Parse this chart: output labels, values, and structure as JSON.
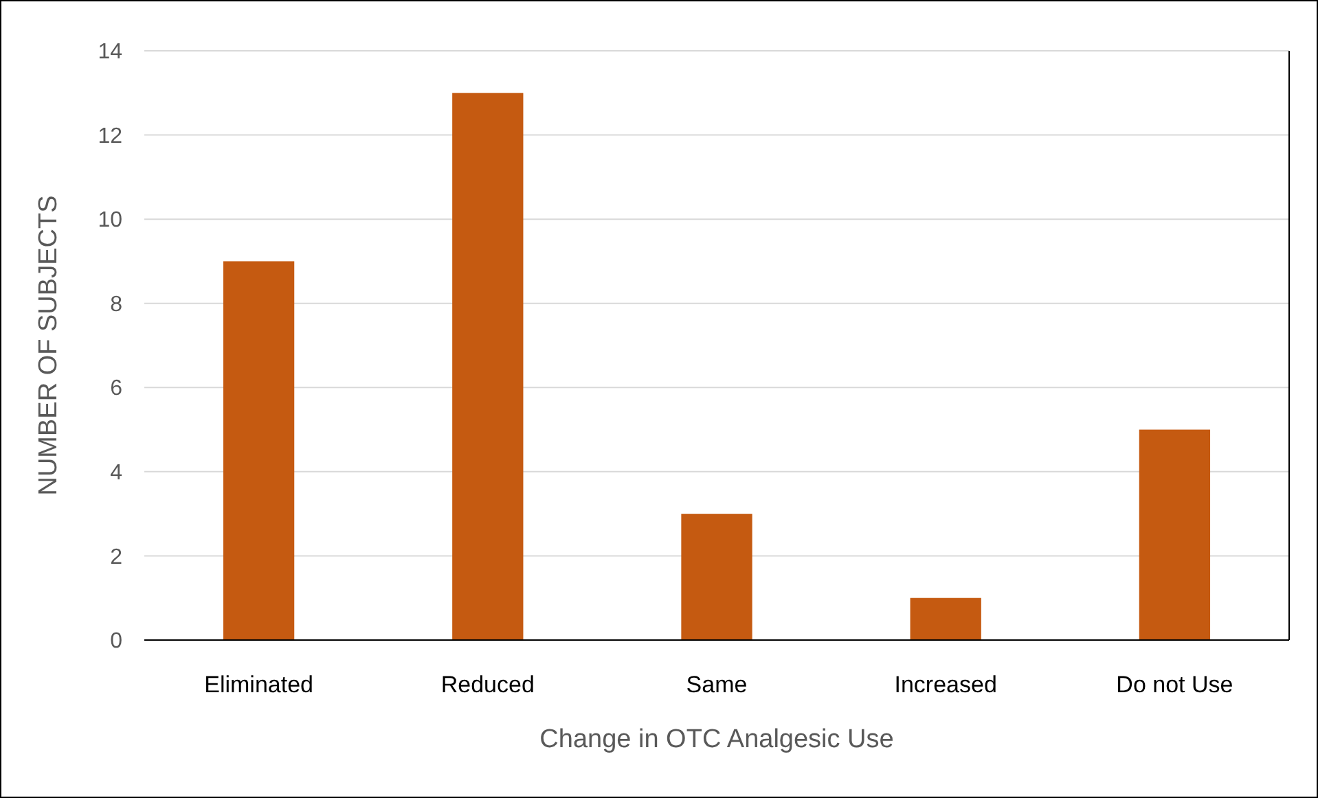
{
  "chart_data": {
    "type": "bar",
    "xlabel": "Change in OTC Analgesic Use",
    "ylabel": "NUMBER OF SUBJECTS",
    "categories": [
      "Eliminated",
      "Reduced",
      "Same",
      "Increased",
      "Do not Use"
    ],
    "values": [
      9,
      13,
      3,
      1,
      5
    ],
    "color": "#c55a11",
    "ylim": [
      0,
      14
    ],
    "yticks": [
      0,
      2,
      4,
      6,
      8,
      10,
      12,
      14
    ],
    "grid": "y"
  }
}
